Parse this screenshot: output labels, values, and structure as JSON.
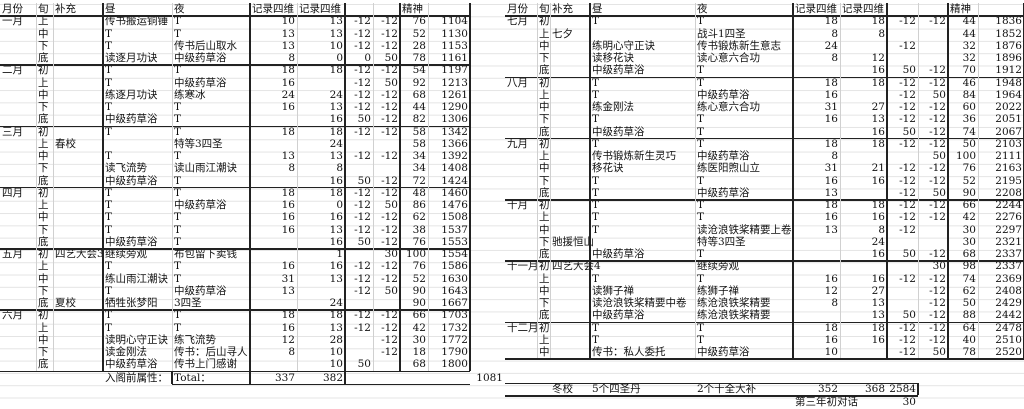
{
  "headers": [
    "月份",
    "旬",
    "补充",
    "昼",
    "夜",
    "记录四维",
    "记录四维",
    "",
    "",
    "精神",
    ""
  ],
  "left": {
    "rows": [
      [
        "一月",
        "上",
        "",
        "传书搬运铜锤",
        "T",
        "10",
        "13",
        "-12",
        "-12",
        "76",
        "1104"
      ],
      [
        "",
        "中",
        "",
        "T",
        "T",
        "13",
        "13",
        "-12",
        "-12",
        "52",
        "1130"
      ],
      [
        "",
        "下",
        "",
        "T",
        "传书后山取水",
        "13",
        "10",
        "-12",
        "-12",
        "28",
        "1153"
      ],
      [
        "",
        "底",
        "",
        "读逐月功诀",
        "中级药草浴",
        "8",
        "0",
        "0",
        "50",
        "78",
        "1161"
      ],
      [
        "二月",
        "初",
        "",
        "T",
        "T",
        "18",
        "18",
        "-12",
        "-12",
        "54",
        "1197"
      ],
      [
        "",
        "上",
        "",
        "T",
        "中级药草浴",
        "16",
        "",
        "-12",
        "50",
        "92",
        "1213"
      ],
      [
        "",
        "中",
        "",
        "练逐月功诀",
        "练寒冰",
        "24",
        "24",
        "-12",
        "-12",
        "68",
        "1261"
      ],
      [
        "",
        "下",
        "",
        "T",
        "T",
        "16",
        "13",
        "-12",
        "-12",
        "44",
        "1290"
      ],
      [
        "",
        "底",
        "",
        "中级药草浴",
        "T",
        "",
        "16",
        "50",
        "-12",
        "82",
        "1306"
      ],
      [
        "三月",
        "初",
        "",
        "T",
        "T",
        "18",
        "18",
        "-12",
        "-12",
        "58",
        "1342"
      ],
      [
        "",
        "上",
        "春校",
        "",
        "特等3四圣",
        "",
        "24",
        "",
        "",
        "58",
        "1366"
      ],
      [
        "",
        "中",
        "",
        "T",
        "T",
        "13",
        "13",
        "-12",
        "-12",
        "34",
        "1392"
      ],
      [
        "",
        "下",
        "",
        "读飞流势",
        "读山雨江潮诀",
        "8",
        "8",
        "",
        "",
        "34",
        "1408"
      ],
      [
        "",
        "底",
        "",
        "中级药草浴",
        "T",
        "",
        "16",
        "50",
        "-12",
        "72",
        "1424"
      ],
      [
        "四月",
        "初",
        "",
        "T",
        "T",
        "18",
        "18",
        "-12",
        "-12",
        "48",
        "1460"
      ],
      [
        "",
        "上",
        "",
        "T",
        "中级药草浴",
        "16",
        "0",
        "-12",
        "50",
        "86",
        "1476"
      ],
      [
        "",
        "中",
        "",
        "T",
        "T",
        "16",
        "16",
        "-12",
        "-12",
        "62",
        "1508"
      ],
      [
        "",
        "下",
        "",
        "T",
        "T",
        "16",
        "13",
        "-12",
        "-12",
        "38",
        "1537"
      ],
      [
        "",
        "底",
        "",
        "中级药草浴",
        "T",
        "",
        "16",
        "50",
        "-12",
        "76",
        "1553"
      ],
      [
        "五月",
        "初",
        "四艺大会3",
        "继续旁观",
        "布包留下卖钱",
        "",
        "1",
        "",
        "30",
        "100",
        "1554"
      ],
      [
        "",
        "上",
        "",
        "T",
        "T",
        "16",
        "16",
        "-12",
        "-12",
        "76",
        "1586"
      ],
      [
        "",
        "中",
        "",
        "练山雨江潮诀",
        "T",
        "31",
        "13",
        "-12",
        "-12",
        "52",
        "1630"
      ],
      [
        "",
        "下",
        "",
        "T",
        "中级药草浴",
        "13",
        "",
        "-12",
        "50",
        "90",
        "1643"
      ],
      [
        "",
        "底",
        "夏校",
        "牺牲张梦阳",
        "3四圣",
        "",
        "24",
        "",
        "",
        "90",
        "1667"
      ],
      [
        "六月",
        "初",
        "",
        "T",
        "T",
        "18",
        "18",
        "-12",
        "-12",
        "66",
        "1703"
      ],
      [
        "",
        "上",
        "",
        "T",
        "T",
        "16",
        "13",
        "-12",
        "-12",
        "42",
        "1732"
      ],
      [
        "",
        "中",
        "",
        "读明心守正诀",
        "练飞流势",
        "12",
        "28",
        "",
        "-12",
        "30",
        "1772"
      ],
      [
        "",
        "下",
        "",
        "读金刚法",
        "传书：后山寻人",
        "8",
        "10",
        "",
        "-12",
        "18",
        "1790"
      ],
      [
        "",
        "底",
        "",
        "中级药草浴",
        "传书上门感谢",
        "",
        "10",
        "50",
        "",
        "68",
        "1800"
      ]
    ],
    "total": {
      "label": "入阁前属性：",
      "total_label": "Total：",
      "r1": "337",
      "r2": "382",
      "extra": "1081"
    }
  },
  "right": {
    "rows": [
      [
        "七月",
        "初",
        "",
        "T",
        "T",
        "18",
        "18",
        "-12",
        "-12",
        "44",
        "1836"
      ],
      [
        "",
        "上",
        "七夕",
        "",
        "战斗1四圣",
        "8",
        "8",
        "",
        "",
        "44",
        "1852"
      ],
      [
        "",
        "中",
        "",
        "练明心守正诀",
        "传书锻炼新生意志",
        "24",
        "",
        "-12",
        "",
        "32",
        "1876"
      ],
      [
        "",
        "下",
        "",
        "读移花诀",
        "读心意六合功",
        "8",
        "12",
        "",
        "",
        "32",
        "1896"
      ],
      [
        "",
        "底",
        "",
        "中级药草浴",
        "T",
        "",
        "16",
        "50",
        "-12",
        "70",
        "1912"
      ],
      [
        "八月",
        "初",
        "",
        "T",
        "T",
        "18",
        "18",
        "-12",
        "-12",
        "46",
        "1948"
      ],
      [
        "",
        "上",
        "",
        "T",
        "中级药草浴",
        "16",
        "",
        "-12",
        "50",
        "84",
        "1964"
      ],
      [
        "",
        "中",
        "",
        "练金刚法",
        "练心意六合功",
        "31",
        "27",
        "-12",
        "-12",
        "60",
        "2022"
      ],
      [
        "",
        "下",
        "",
        "T",
        "T",
        "16",
        "13",
        "-12",
        "-12",
        "36",
        "2051"
      ],
      [
        "",
        "底",
        "",
        "中级药草浴",
        "T",
        "",
        "16",
        "50",
        "-12",
        "74",
        "2067"
      ],
      [
        "九月",
        "初",
        "",
        "T",
        "T",
        "18",
        "18",
        "-12",
        "-12",
        "50",
        "2103"
      ],
      [
        "",
        "上",
        "",
        "传书锻炼新生灵巧",
        "中级药草浴",
        "8",
        "",
        "",
        "50",
        "100",
        "2111"
      ],
      [
        "",
        "中",
        "",
        "移花诀",
        "练医阳煦山立",
        "31",
        "21",
        "-12",
        "-12",
        "76",
        "2163"
      ],
      [
        "",
        "下",
        "",
        "T",
        "T",
        "16",
        "16",
        "-12",
        "-12",
        "52",
        "2195"
      ],
      [
        "",
        "底",
        "",
        "T",
        "中级药草浴",
        "13",
        "",
        "-12",
        "50",
        "90",
        "2208"
      ],
      [
        "十月",
        "初",
        "",
        "T",
        "T",
        "18",
        "18",
        "-12",
        "-12",
        "66",
        "2244"
      ],
      [
        "",
        "上",
        "",
        "T",
        "T",
        "16",
        "16",
        "-12",
        "-12",
        "42",
        "2276"
      ],
      [
        "",
        "中",
        "",
        "T",
        "读沧浪铁桨精要上卷",
        "13",
        "8",
        "-12",
        "",
        "30",
        "2297"
      ],
      [
        "",
        "下",
        "驰援恒山",
        "",
        "特等3四圣",
        "",
        "24",
        "",
        "",
        "30",
        "2321"
      ],
      [
        "",
        "底",
        "",
        "中级药草浴",
        "T",
        "",
        "16",
        "50",
        "-12",
        "68",
        "2337"
      ],
      [
        "十一月",
        "初",
        "四艺大会4",
        "",
        "继续旁观",
        "",
        "",
        "",
        "30",
        "98",
        "2337"
      ],
      [
        "",
        "上",
        "",
        "T",
        "T",
        "16",
        "16",
        "-12",
        "-12",
        "74",
        "2369"
      ],
      [
        "",
        "中",
        "",
        "读狮子禅",
        "练狮子禅",
        "12",
        "27",
        "",
        "-12",
        "62",
        "2408"
      ],
      [
        "",
        "下",
        "",
        "读沧浪铁桨精要中卷",
        "练沧浪铁桨精要",
        "8",
        "13",
        "",
        "-12",
        "50",
        "2429"
      ],
      [
        "",
        "底",
        "",
        "中级药草浴",
        "练沧浪铁桨精要",
        "",
        "13",
        "50",
        "-12",
        "88",
        "2442"
      ],
      [
        "十二月",
        "初",
        "",
        "T",
        "T",
        "18",
        "18",
        "-12",
        "-12",
        "64",
        "2478"
      ],
      [
        "",
        "上",
        "",
        "T",
        "T",
        "16",
        "16",
        "-12",
        "-12",
        "40",
        "2510"
      ],
      [
        "",
        "中",
        "",
        "传书：私人委托",
        "中级药草浴",
        "10",
        "",
        "-12",
        "50",
        "78",
        "2520"
      ]
    ],
    "footer": {
      "extra": "冬校",
      "day": "5个四圣丹",
      "night": "2个十全大补",
      "r1": "352",
      "r2": "368",
      "c3": "2584",
      "dialog_label": "第三年初对话",
      "dialog_value": "30"
    }
  }
}
